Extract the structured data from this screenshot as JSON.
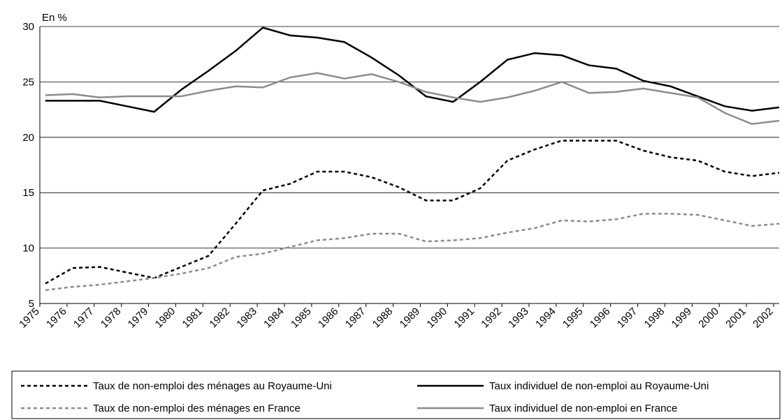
{
  "chart_data": {
    "type": "line",
    "y_label": "En %",
    "categories": [
      "1975",
      "1976",
      "1977",
      "1978",
      "1979",
      "1980",
      "1981",
      "1982",
      "1983",
      "1984",
      "1985",
      "1986",
      "1987",
      "1988",
      "1989",
      "1990",
      "1991",
      "1992",
      "1993",
      "1994",
      "1995",
      "1996",
      "1997",
      "1998",
      "1999",
      "2000",
      "2001",
      "2002"
    ],
    "ylim": [
      5,
      30
    ],
    "yticks": [
      5,
      10,
      15,
      20,
      25,
      30
    ],
    "grid": true,
    "series": [
      {
        "name": "Taux de non-emploi des ménages au Royaume-Uni",
        "color": "#000000",
        "style": "dashed",
        "values": [
          6.8,
          8.2,
          8.3,
          7.8,
          7.3,
          8.3,
          9.3,
          12.2,
          15.2,
          15.8,
          16.9,
          16.9,
          16.4,
          15.5,
          14.3,
          14.3,
          15.4,
          17.9,
          18.9,
          19.7,
          19.7,
          19.7,
          18.8,
          18.2,
          17.9,
          16.9,
          16.5,
          16.8
        ]
      },
      {
        "name": "Taux individuel de non-emploi au Royaume-Uni",
        "color": "#000000",
        "style": "solid",
        "values": [
          23.3,
          23.3,
          23.3,
          22.8,
          22.3,
          24.3,
          26.0,
          27.8,
          29.9,
          29.2,
          29.0,
          28.6,
          27.2,
          25.6,
          23.7,
          23.2,
          25.0,
          27.0,
          27.6,
          27.4,
          26.5,
          26.2,
          25.1,
          24.6,
          23.7,
          22.8,
          22.4,
          22.7
        ]
      },
      {
        "name": "Taux de non-emploi des ménages en France",
        "color": "#8c8c8c",
        "style": "dashed",
        "values": [
          6.2,
          6.5,
          6.7,
          7.0,
          7.3,
          7.7,
          8.2,
          9.2,
          9.5,
          10.1,
          10.7,
          10.9,
          11.3,
          11.3,
          10.6,
          10.7,
          10.9,
          11.4,
          11.8,
          12.5,
          12.4,
          12.6,
          13.1,
          13.1,
          13.0,
          12.5,
          12.0,
          12.2
        ]
      },
      {
        "name": "Taux individuel de non-emploi en France",
        "color": "#8c8c8c",
        "style": "solid",
        "values": [
          23.8,
          23.9,
          23.6,
          23.7,
          23.7,
          23.7,
          24.2,
          24.6,
          24.5,
          25.4,
          25.8,
          25.3,
          25.7,
          25.0,
          24.1,
          23.6,
          23.2,
          23.6,
          24.2,
          25.0,
          24.0,
          24.1,
          24.4,
          24.0,
          23.6,
          22.2,
          21.2,
          21.5
        ]
      }
    ]
  }
}
